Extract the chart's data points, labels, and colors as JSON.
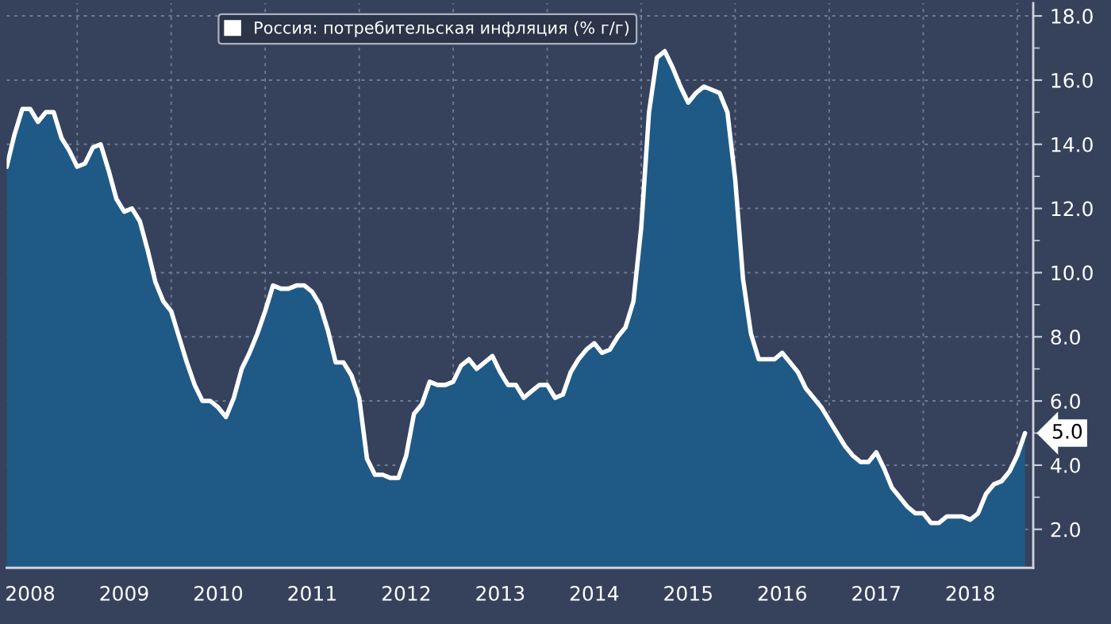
{
  "chart_data": {
    "type": "area",
    "x": [
      2008.25,
      2008.333,
      2008.417,
      2008.5,
      2008.583,
      2008.667,
      2008.75,
      2008.833,
      2008.917,
      2009.0,
      2009.083,
      2009.167,
      2009.25,
      2009.333,
      2009.417,
      2009.5,
      2009.583,
      2009.667,
      2009.75,
      2009.833,
      2009.917,
      2010.0,
      2010.083,
      2010.167,
      2010.25,
      2010.333,
      2010.417,
      2010.5,
      2010.583,
      2010.667,
      2010.75,
      2010.833,
      2010.917,
      2011.0,
      2011.083,
      2011.167,
      2011.25,
      2011.333,
      2011.417,
      2011.5,
      2011.583,
      2011.667,
      2011.75,
      2011.833,
      2011.917,
      2012.0,
      2012.083,
      2012.167,
      2012.25,
      2012.333,
      2012.417,
      2012.5,
      2012.583,
      2012.667,
      2012.75,
      2012.833,
      2012.917,
      2013.0,
      2013.083,
      2013.167,
      2013.25,
      2013.333,
      2013.417,
      2013.5,
      2013.583,
      2013.667,
      2013.75,
      2013.833,
      2013.917,
      2014.0,
      2014.083,
      2014.167,
      2014.25,
      2014.333,
      2014.417,
      2014.5,
      2014.583,
      2014.667,
      2014.75,
      2014.833,
      2014.917,
      2015.0,
      2015.083,
      2015.167,
      2015.25,
      2015.333,
      2015.417,
      2015.5,
      2015.583,
      2015.667,
      2015.75,
      2015.833,
      2015.917,
      2016.0,
      2016.083,
      2016.167,
      2016.25,
      2016.333,
      2016.417,
      2016.5,
      2016.583,
      2016.667,
      2016.75,
      2016.833,
      2016.917,
      2017.0,
      2017.083,
      2017.167,
      2017.25,
      2017.333,
      2017.417,
      2017.5,
      2017.583,
      2017.667,
      2017.75,
      2017.833,
      2017.917,
      2018.0,
      2018.083,
      2018.167,
      2018.25,
      2018.333,
      2018.417,
      2018.5,
      2018.583,
      2018.667,
      2018.75,
      2018.833,
      2018.917,
      2019.0,
      2019.083
    ],
    "series": [
      {
        "name": "Россия: потребительская инфляция (% г/г)",
        "color": "#ffffff",
        "values": [
          13.3,
          14.3,
          15.1,
          15.1,
          14.7,
          15.0,
          15.0,
          14.2,
          13.8,
          13.3,
          13.4,
          13.9,
          14.0,
          13.2,
          12.3,
          11.9,
          12.0,
          11.6,
          10.7,
          9.7,
          9.1,
          8.8,
          8.0,
          7.2,
          6.5,
          6.0,
          6.0,
          5.8,
          5.5,
          6.1,
          7.0,
          7.5,
          8.1,
          8.8,
          9.6,
          9.5,
          9.5,
          9.6,
          9.6,
          9.4,
          9.0,
          8.2,
          7.2,
          7.2,
          6.8,
          6.1,
          4.2,
          3.7,
          3.7,
          3.6,
          3.6,
          4.3,
          5.6,
          5.9,
          6.6,
          6.5,
          6.5,
          6.6,
          7.1,
          7.3,
          7.0,
          7.2,
          7.4,
          6.9,
          6.5,
          6.5,
          6.1,
          6.3,
          6.5,
          6.5,
          6.1,
          6.2,
          6.9,
          7.3,
          7.6,
          7.8,
          7.5,
          7.6,
          8.0,
          8.3,
          9.1,
          11.4,
          15.0,
          16.7,
          16.9,
          16.4,
          15.8,
          15.3,
          15.6,
          15.8,
          15.7,
          15.6,
          15.0,
          12.9,
          9.8,
          8.1,
          7.3,
          7.3,
          7.3,
          7.5,
          7.2,
          6.9,
          6.4,
          6.1,
          5.8,
          5.4,
          5.0,
          4.6,
          4.3,
          4.1,
          4.1,
          4.4,
          3.9,
          3.3,
          3.0,
          2.7,
          2.5,
          2.5,
          2.2,
          2.2,
          2.4,
          2.4,
          2.4,
          2.3,
          2.5,
          3.1,
          3.4,
          3.5,
          3.8,
          4.3,
          5.0
        ]
      }
    ],
    "xlim": [
      2008.25,
      2019.17
    ],
    "xticks": [
      {
        "value": 2008.5,
        "label": "2008"
      },
      {
        "value": 2009.5,
        "label": "2009"
      },
      {
        "value": 2010.5,
        "label": "2010"
      },
      {
        "value": 2011.5,
        "label": "2011"
      },
      {
        "value": 2012.5,
        "label": "2012"
      },
      {
        "value": 2013.5,
        "label": "2013"
      },
      {
        "value": 2014.5,
        "label": "2014"
      },
      {
        "value": 2015.5,
        "label": "2015"
      },
      {
        "value": 2016.5,
        "label": "2016"
      },
      {
        "value": 2017.5,
        "label": "2017"
      },
      {
        "value": 2018.5,
        "label": "2018"
      }
    ],
    "ylim": [
      0.8,
      18.4
    ],
    "yticks": [
      {
        "value": 2,
        "label": "2.0"
      },
      {
        "value": 4,
        "label": "4.0"
      },
      {
        "value": 6,
        "label": "6.0"
      },
      {
        "value": 8,
        "label": "8.0"
      },
      {
        "value": 10,
        "label": "10.0"
      },
      {
        "value": 12,
        "label": "12.0"
      },
      {
        "value": 14,
        "label": "14.0"
      },
      {
        "value": 16,
        "label": "16.0"
      },
      {
        "value": 18,
        "label": "18.0"
      }
    ],
    "annotations": [
      {
        "text": "5.0",
        "x": 2019.083,
        "y": 5.0
      }
    ],
    "grid": true,
    "legend": "top"
  }
}
